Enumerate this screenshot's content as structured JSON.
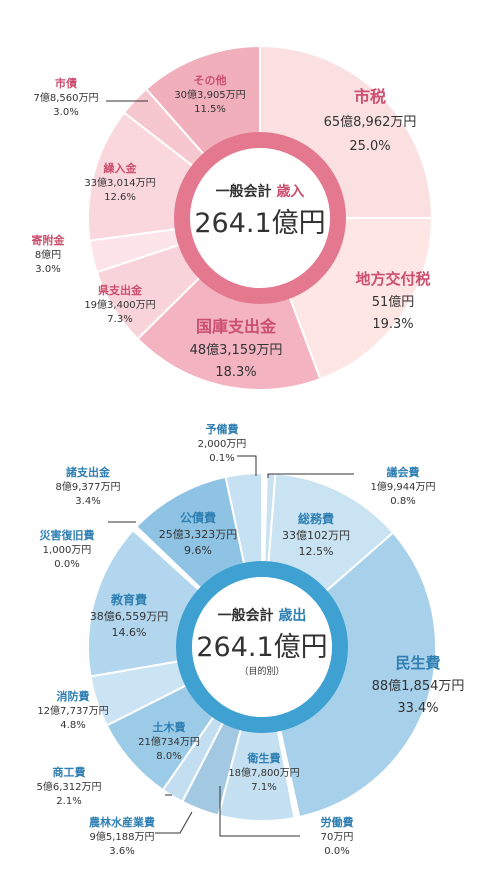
{
  "chart_data": [
    {
      "type": "pie",
      "center_title": "一般会計",
      "center_accent": "歳入",
      "center_total": "264.1億円",
      "slices": [
        {
          "name": "市税",
          "amount": "65億8,962万円",
          "pct": "25.0%",
          "value": 25.0,
          "color": "#fbe0e2"
        },
        {
          "name": "地方交付税",
          "amount": "51億円",
          "pct": "19.3%",
          "value": 19.3,
          "color": "#fde6e3"
        },
        {
          "name": "国庫支出金",
          "amount": "48億3,159万円",
          "pct": "18.3%",
          "value": 18.3,
          "color": "#f3b3c1"
        },
        {
          "name": "県支出金",
          "amount": "19億3,400万円",
          "pct": "7.3%",
          "value": 7.3,
          "color": "#f9d3da"
        },
        {
          "name": "寄附金",
          "amount": "8億円",
          "pct": "3.0%",
          "value": 3.0,
          "color": "#fde4e8"
        },
        {
          "name": "繰入金",
          "amount": "33億3,014万円",
          "pct": "12.6%",
          "value": 12.6,
          "color": "#fad7dc"
        },
        {
          "name": "市債",
          "amount": "7億8,560万円",
          "pct": "3.0%",
          "value": 3.0,
          "color": "#f6c7cf"
        },
        {
          "name": "その他",
          "amount": "30億3,905万円",
          "pct": "11.5%",
          "value": 11.5,
          "color": "#f1aebb"
        }
      ]
    },
    {
      "type": "pie",
      "center_title": "一般会計",
      "center_accent": "歳出",
      "center_total": "264.1億円",
      "center_note": "（目的別）",
      "slices": [
        {
          "name": "予備費",
          "amount": "2,000万円",
          "pct": "0.1%",
          "value": 0.1,
          "color": "#ffffff"
        },
        {
          "name": "議会費",
          "amount": "1億9,944万円",
          "pct": "0.8%",
          "value": 0.8,
          "color": "#c8e2f1"
        },
        {
          "name": "総務費",
          "amount": "33億102万円",
          "pct": "12.5%",
          "value": 12.5,
          "color": "#c9e3f2"
        },
        {
          "name": "民生費",
          "amount": "88億1,854万円",
          "pct": "33.4%",
          "value": 33.4,
          "color": "#a7d0ea"
        },
        {
          "name": "労働費",
          "amount": "70万円",
          "pct": "0.0%",
          "value": 0.0,
          "color": "#ffffff"
        },
        {
          "name": "衛生費",
          "amount": "18億7,800万円",
          "pct": "7.1%",
          "value": 7.1,
          "color": "#c5e0f1"
        },
        {
          "name": "農林水産業費",
          "amount": "9億5,188万円",
          "pct": "3.6%",
          "value": 3.6,
          "color": "#a3c9e2"
        },
        {
          "name": "商工費",
          "amount": "5億6,312万円",
          "pct": "2.1%",
          "value": 2.1,
          "color": "#c3def0"
        },
        {
          "name": "土木費",
          "amount": "21億734万円",
          "pct": "8.0%",
          "value": 8.0,
          "color": "#9ccbe8"
        },
        {
          "name": "消防費",
          "amount": "12億7,737万円",
          "pct": "4.8%",
          "value": 4.8,
          "color": "#cbe4f3"
        },
        {
          "name": "教育費",
          "amount": "38億6,559万円",
          "pct": "14.6%",
          "value": 14.6,
          "color": "#b1d6ed"
        },
        {
          "name": "災害復旧費",
          "amount": "1,000万円",
          "pct": "0.0%",
          "value": 0.0,
          "color": "#ffffff"
        },
        {
          "name": "公債費",
          "amount": "25億3,323万円",
          "pct": "9.6%",
          "value": 9.6,
          "color": "#8ec3e4"
        },
        {
          "name": "諸支出金",
          "amount": "8億9,377万円",
          "pct": "3.4%",
          "value": 3.4,
          "color": "#c6e1f2"
        }
      ]
    }
  ]
}
